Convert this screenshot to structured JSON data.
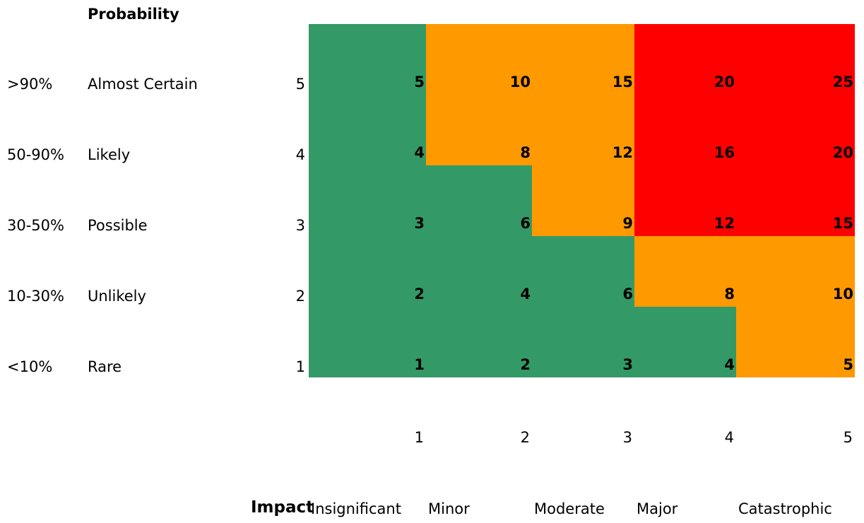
{
  "chart_data": {
    "type": "heatmap",
    "title": "Probability",
    "y_axis": {
      "levels": [
        5,
        4,
        3,
        2,
        1
      ],
      "percentages": [
        ">90%",
        "50-90%",
        "30-50%",
        "10-30%",
        "<10%"
      ],
      "labels": [
        "Almost Certain",
        "Likely",
        "Possible",
        "Unlikely",
        "Rare"
      ]
    },
    "x_axis": {
      "title": "Impact",
      "levels": [
        1,
        2,
        3,
        4,
        5
      ],
      "labels": [
        "Insignificant",
        "Minor",
        "Moderate",
        "Major",
        "Catastrophic"
      ]
    },
    "values": [
      [
        5,
        10,
        15,
        20,
        25
      ],
      [
        4,
        8,
        12,
        16,
        20
      ],
      [
        3,
        6,
        9,
        12,
        15
      ],
      [
        2,
        4,
        6,
        8,
        10
      ],
      [
        1,
        2,
        3,
        4,
        5
      ]
    ],
    "rating_colors": [
      [
        "green",
        "orange",
        "orange",
        "red",
        "red"
      ],
      [
        "green",
        "orange",
        "orange",
        "red",
        "red"
      ],
      [
        "green",
        "green",
        "orange",
        "red",
        "red"
      ],
      [
        "green",
        "green",
        "green",
        "orange",
        "orange"
      ],
      [
        "green",
        "green",
        "green",
        "green",
        "orange"
      ]
    ],
    "colors": {
      "green": "#339966",
      "orange": "#FF9900",
      "red": "#FF0000"
    }
  }
}
